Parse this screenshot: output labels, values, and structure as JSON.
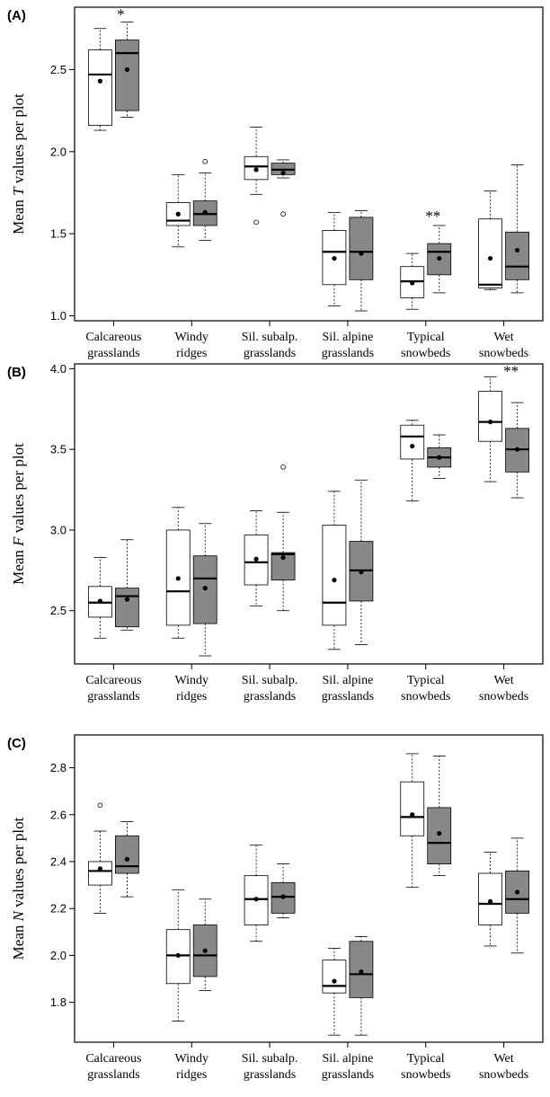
{
  "chart_data": [
    {
      "type": "box",
      "panel_label": "(A)",
      "ylabel_pre": "Mean ",
      "ylabel_var": "T",
      "ylabel_post": " values per plot",
      "ylim": [
        0.97,
        2.88
      ],
      "yticks": [
        "1.0",
        "1.5",
        "2.0",
        "2.5"
      ],
      "ytick_values": [
        1.0,
        1.5,
        2.0,
        2.5
      ],
      "categories": [
        [
          "Calcareous",
          "grasslands"
        ],
        [
          "Windy",
          "ridges"
        ],
        [
          "Sil. subalp.",
          "grasslands"
        ],
        [
          "Sil. alpine",
          "grasslands"
        ],
        [
          "Typical",
          "snowbeds"
        ],
        [
          "Wet",
          "snowbeds"
        ]
      ],
      "series": [
        {
          "fill": "#ffffff",
          "boxes": [
            {
              "min": 2.13,
              "q1": 2.16,
              "median": 2.47,
              "q3": 2.62,
              "max": 2.75,
              "mean": 2.43,
              "outliers": []
            },
            {
              "min": 1.42,
              "q1": 1.55,
              "median": 1.58,
              "q3": 1.69,
              "max": 1.86,
              "mean": 1.62,
              "outliers": []
            },
            {
              "min": 1.74,
              "q1": 1.83,
              "median": 1.91,
              "q3": 1.97,
              "max": 2.15,
              "mean": 1.89,
              "outliers": [
                1.57
              ]
            },
            {
              "min": 1.06,
              "q1": 1.19,
              "median": 1.39,
              "q3": 1.52,
              "max": 1.63,
              "mean": 1.35,
              "outliers": []
            },
            {
              "min": 1.04,
              "q1": 1.11,
              "median": 1.21,
              "q3": 1.3,
              "max": 1.38,
              "mean": 1.2,
              "outliers": []
            },
            {
              "min": 1.16,
              "q1": 1.17,
              "median": 1.19,
              "q3": 1.59,
              "max": 1.76,
              "mean": 1.35,
              "outliers": []
            }
          ]
        },
        {
          "fill": "#888888",
          "boxes": [
            {
              "min": 2.21,
              "q1": 2.25,
              "median": 2.6,
              "q3": 2.68,
              "max": 2.79,
              "mean": 2.5,
              "outliers": []
            },
            {
              "min": 1.46,
              "q1": 1.55,
              "median": 1.62,
              "q3": 1.7,
              "max": 1.87,
              "mean": 1.63,
              "outliers": [
                1.94
              ]
            },
            {
              "min": 1.84,
              "q1": 1.86,
              "median": 1.89,
              "q3": 1.93,
              "max": 1.95,
              "mean": 1.87,
              "outliers": [
                1.62
              ]
            },
            {
              "min": 1.03,
              "q1": 1.22,
              "median": 1.39,
              "q3": 1.6,
              "max": 1.64,
              "mean": 1.38,
              "outliers": []
            },
            {
              "min": 1.14,
              "q1": 1.25,
              "median": 1.39,
              "q3": 1.44,
              "max": 1.55,
              "mean": 1.35,
              "outliers": []
            },
            {
              "min": 1.14,
              "q1": 1.22,
              "median": 1.3,
              "q3": 1.51,
              "max": 1.92,
              "mean": 1.4,
              "outliers": []
            }
          ]
        }
      ],
      "annotations": [
        {
          "category": 0,
          "y": 2.85,
          "text": "*"
        },
        {
          "category": 4,
          "y": 1.62,
          "text": "**"
        }
      ]
    },
    {
      "type": "box",
      "panel_label": "(B)",
      "ylabel_pre": "Mean ",
      "ylabel_var": "F",
      "ylabel_post": " values per plot",
      "ylim": [
        2.17,
        4.03
      ],
      "yticks": [
        "2.5",
        "3.0",
        "3.5",
        "4.0"
      ],
      "ytick_values": [
        2.5,
        3.0,
        3.5,
        4.0
      ],
      "categories": [
        [
          "Calcareous",
          "grasslands"
        ],
        [
          "Windy",
          "ridges"
        ],
        [
          "Sil. subalp.",
          "grasslands"
        ],
        [
          "Sil. alpine",
          "grasslands"
        ],
        [
          "Typical",
          "snowbeds"
        ],
        [
          "Wet",
          "snowbeds"
        ]
      ],
      "series": [
        {
          "fill": "#ffffff",
          "boxes": [
            {
              "min": 2.33,
              "q1": 2.46,
              "median": 2.55,
              "q3": 2.65,
              "max": 2.83,
              "mean": 2.56,
              "outliers": []
            },
            {
              "min": 2.33,
              "q1": 2.41,
              "median": 2.62,
              "q3": 3.0,
              "max": 3.14,
              "mean": 2.7,
              "outliers": []
            },
            {
              "min": 2.53,
              "q1": 2.66,
              "median": 2.8,
              "q3": 2.97,
              "max": 3.12,
              "mean": 2.82,
              "outliers": []
            },
            {
              "min": 2.26,
              "q1": 2.41,
              "median": 2.55,
              "q3": 3.03,
              "max": 3.24,
              "mean": 2.69,
              "outliers": []
            },
            {
              "min": 3.18,
              "q1": 3.44,
              "median": 3.58,
              "q3": 3.65,
              "max": 3.68,
              "mean": 3.52,
              "outliers": []
            },
            {
              "min": 3.3,
              "q1": 3.55,
              "median": 3.67,
              "q3": 3.86,
              "max": 3.95,
              "mean": 3.67,
              "outliers": []
            }
          ]
        },
        {
          "fill": "#888888",
          "boxes": [
            {
              "min": 2.38,
              "q1": 2.4,
              "median": 2.59,
              "q3": 2.64,
              "max": 2.94,
              "mean": 2.57,
              "outliers": []
            },
            {
              "min": 2.22,
              "q1": 2.42,
              "median": 2.7,
              "q3": 2.84,
              "max": 3.04,
              "mean": 2.64,
              "outliers": []
            },
            {
              "min": 2.5,
              "q1": 2.69,
              "median": 2.85,
              "q3": 2.86,
              "max": 3.11,
              "mean": 2.83,
              "outliers": [
                3.39
              ]
            },
            {
              "min": 2.29,
              "q1": 2.56,
              "median": 2.75,
              "q3": 2.93,
              "max": 3.31,
              "mean": 2.74,
              "outliers": []
            },
            {
              "min": 3.32,
              "q1": 3.39,
              "median": 3.45,
              "q3": 3.51,
              "max": 3.59,
              "mean": 3.45,
              "outliers": []
            },
            {
              "min": 3.2,
              "q1": 3.36,
              "median": 3.5,
              "q3": 3.63,
              "max": 3.79,
              "mean": 3.5,
              "outliers": []
            }
          ]
        }
      ],
      "annotations": [
        {
          "category": 5,
          "y": 4.0,
          "text": "**"
        }
      ]
    },
    {
      "type": "box",
      "panel_label": "(C)",
      "ylabel_pre": "Mean ",
      "ylabel_var": "N",
      "ylabel_post": " values per plot",
      "ylim": [
        1.63,
        2.94
      ],
      "yticks": [
        "1.8",
        "2.0",
        "2.2",
        "2.4",
        "2.6",
        "2.8"
      ],
      "ytick_values": [
        1.8,
        2.0,
        2.2,
        2.4,
        2.6,
        2.8
      ],
      "categories": [
        [
          "Calcareous",
          "grasslands"
        ],
        [
          "Windy",
          "ridges"
        ],
        [
          "Sil. subalp.",
          "grasslands"
        ],
        [
          "Sil. alpine",
          "grasslands"
        ],
        [
          "Typical",
          "snowbeds"
        ],
        [
          "Wet",
          "snowbeds"
        ]
      ],
      "series": [
        {
          "fill": "#ffffff",
          "boxes": [
            {
              "min": 2.18,
              "q1": 2.3,
              "median": 2.36,
              "q3": 2.4,
              "max": 2.53,
              "mean": 2.37,
              "outliers": [
                2.64
              ]
            },
            {
              "min": 1.72,
              "q1": 1.88,
              "median": 2.0,
              "q3": 2.11,
              "max": 2.28,
              "mean": 2.0,
              "outliers": []
            },
            {
              "min": 2.06,
              "q1": 2.13,
              "median": 2.24,
              "q3": 2.34,
              "max": 2.47,
              "mean": 2.24,
              "outliers": []
            },
            {
              "min": 1.66,
              "q1": 1.84,
              "median": 1.87,
              "q3": 1.98,
              "max": 2.03,
              "mean": 1.89,
              "outliers": []
            },
            {
              "min": 2.29,
              "q1": 2.51,
              "median": 2.59,
              "q3": 2.74,
              "max": 2.86,
              "mean": 2.6,
              "outliers": []
            },
            {
              "min": 2.04,
              "q1": 2.13,
              "median": 2.22,
              "q3": 2.35,
              "max": 2.44,
              "mean": 2.23,
              "outliers": []
            }
          ]
        },
        {
          "fill": "#888888",
          "boxes": [
            {
              "min": 2.25,
              "q1": 2.35,
              "median": 2.38,
              "q3": 2.51,
              "max": 2.57,
              "mean": 2.41,
              "outliers": []
            },
            {
              "min": 1.85,
              "q1": 1.91,
              "median": 2.0,
              "q3": 2.13,
              "max": 2.24,
              "mean": 2.02,
              "outliers": []
            },
            {
              "min": 2.16,
              "q1": 2.18,
              "median": 2.25,
              "q3": 2.31,
              "max": 2.39,
              "mean": 2.25,
              "outliers": []
            },
            {
              "min": 1.66,
              "q1": 1.82,
              "median": 1.92,
              "q3": 2.06,
              "max": 2.08,
              "mean": 1.93,
              "outliers": []
            },
            {
              "min": 2.34,
              "q1": 2.39,
              "median": 2.48,
              "q3": 2.63,
              "max": 2.85,
              "mean": 2.52,
              "outliers": []
            },
            {
              "min": 2.01,
              "q1": 2.18,
              "median": 2.24,
              "q3": 2.36,
              "max": 2.5,
              "mean": 2.27,
              "outliers": []
            }
          ]
        }
      ],
      "annotations": []
    }
  ]
}
